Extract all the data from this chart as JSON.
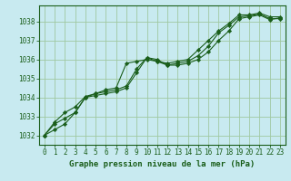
{
  "title": "Graphe pression niveau de la mer (hPa)",
  "background_color": "#c8eaf0",
  "grid_color": "#a0c8a0",
  "line_color": "#1a5e1a",
  "marker_color": "#1a5e1a",
  "xlim": [
    -0.5,
    23.5
  ],
  "ylim": [
    1031.5,
    1038.85
  ],
  "yticks": [
    1032,
    1033,
    1034,
    1035,
    1036,
    1037,
    1038
  ],
  "xticks": [
    0,
    1,
    2,
    3,
    4,
    5,
    6,
    7,
    8,
    9,
    10,
    11,
    12,
    13,
    14,
    15,
    16,
    17,
    18,
    19,
    20,
    21,
    22,
    23
  ],
  "series": [
    [
      1032.0,
      1032.3,
      1032.6,
      1033.2,
      1034.0,
      1034.1,
      1034.2,
      1034.3,
      1034.5,
      1035.3,
      1036.1,
      1036.0,
      1035.7,
      1035.7,
      1035.8,
      1036.0,
      1036.4,
      1037.0,
      1037.5,
      1038.15,
      1038.25,
      1038.35,
      1038.1,
      1038.2
    ],
    [
      1032.0,
      1032.6,
      1032.9,
      1033.2,
      1034.0,
      1034.2,
      1034.3,
      1034.4,
      1034.6,
      1035.5,
      1036.1,
      1035.9,
      1035.7,
      1035.8,
      1035.9,
      1036.2,
      1036.7,
      1037.4,
      1037.8,
      1038.25,
      1038.3,
      1038.4,
      1038.15,
      1038.15
    ],
    [
      1032.0,
      1032.7,
      1033.2,
      1033.5,
      1034.05,
      1034.2,
      1034.4,
      1034.5,
      1035.8,
      1035.9,
      1036.0,
      1035.9,
      1035.8,
      1035.9,
      1036.0,
      1036.5,
      1037.0,
      1037.5,
      1037.9,
      1038.35,
      1038.35,
      1038.45,
      1038.25,
      1038.25
    ]
  ]
}
